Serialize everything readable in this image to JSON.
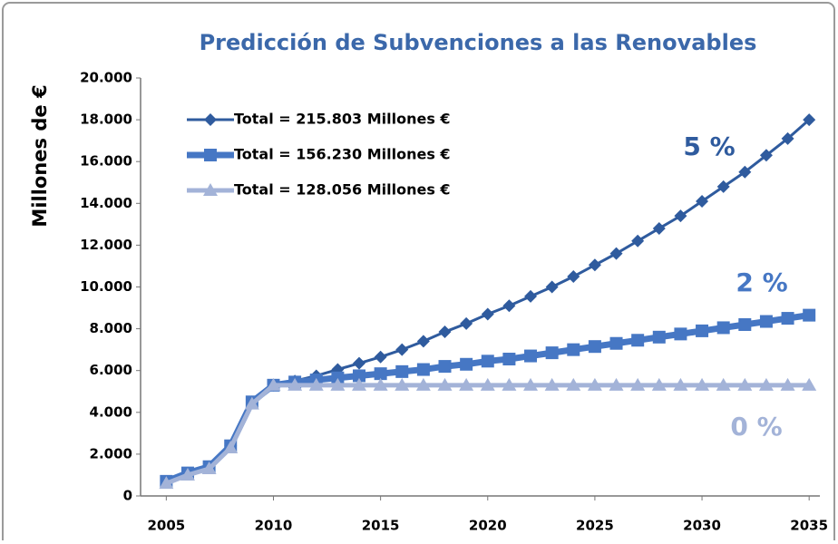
{
  "chart_data": {
    "type": "line",
    "title": "Predicción de Subvenciones a las Renovables",
    "y_label": "Millones de €",
    "x": [
      2005,
      2006,
      2007,
      2008,
      2009,
      2010,
      2011,
      2012,
      2013,
      2014,
      2015,
      2016,
      2017,
      2018,
      2019,
      2020,
      2021,
      2022,
      2023,
      2024,
      2025,
      2026,
      2027,
      2028,
      2029,
      2030,
      2031,
      2032,
      2033,
      2034,
      2035
    ],
    "xlim": [
      2003.8,
      2035.5
    ],
    "xticks": [
      2005,
      2010,
      2015,
      2020,
      2025,
      2030,
      2035
    ],
    "ylim": [
      0,
      20000
    ],
    "yticks": [
      0,
      {
        "value": 2000,
        "label": "2.000"
      },
      {
        "value": 4000,
        "label": "4.000"
      },
      {
        "value": 6000,
        "label": "6.000"
      },
      {
        "value": 8000,
        "label": "8.000"
      },
      {
        "value": 10000,
        "label": "10.000"
      },
      {
        "value": 12000,
        "label": "12.000"
      },
      {
        "value": 14000,
        "label": "14.000"
      },
      {
        "value": 16000,
        "label": "16.000"
      },
      {
        "value": 18000,
        "label": "18.000"
      },
      {
        "value": 20000,
        "label": "20.000"
      }
    ],
    "grid": false,
    "legend": "upper left",
    "series": [
      {
        "name": "Total = 215.803 Millones €",
        "color": "#2f5b9e",
        "marker": "diamond",
        "values": [
          700,
          1100,
          1400,
          2400,
          4500,
          5300,
          5500,
          5750,
          6050,
          6350,
          6650,
          7000,
          7400,
          7850,
          8250,
          8700,
          9100,
          9550,
          10000,
          10500,
          11050,
          11600,
          12200,
          12800,
          13400,
          14100,
          14800,
          15500,
          16300,
          17100,
          18000
        ]
      },
      {
        "name": "Total = 156.230 Millones €",
        "color": "#4677c4",
        "marker": "square",
        "values": [
          700,
          1100,
          1400,
          2400,
          4500,
          5300,
          5450,
          5550,
          5650,
          5750,
          5850,
          5950,
          6050,
          6200,
          6300,
          6450,
          6550,
          6700,
          6850,
          7000,
          7150,
          7300,
          7450,
          7600,
          7750,
          7900,
          8050,
          8200,
          8350,
          8500,
          8650
        ]
      },
      {
        "name": "Total = 128.056 Millones €",
        "color": "#a3b3d8",
        "marker": "triangle",
        "values": [
          600,
          1000,
          1300,
          2300,
          4400,
          5300,
          5300,
          5300,
          5300,
          5300,
          5300,
          5300,
          5300,
          5300,
          5300,
          5300,
          5300,
          5300,
          5300,
          5300,
          5300,
          5300,
          5300,
          5300,
          5300,
          5300,
          5300,
          5300,
          5300,
          5300,
          5300
        ]
      }
    ],
    "annotations": [
      "5 %",
      "2 %",
      "0 %"
    ]
  }
}
